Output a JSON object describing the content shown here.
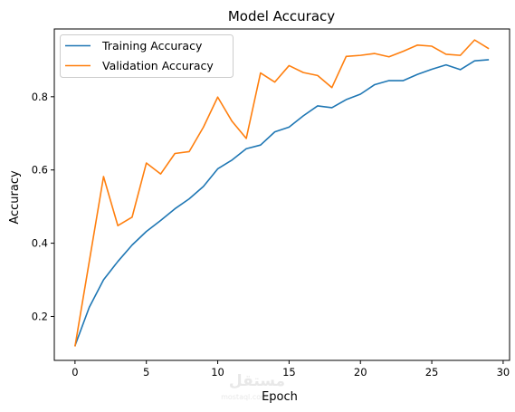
{
  "chart_data": {
    "type": "line",
    "title": "Model Accuracy",
    "xlabel": "Epoch",
    "ylabel": "Accuracy",
    "x": [
      0,
      1,
      2,
      3,
      4,
      5,
      6,
      7,
      8,
      9,
      10,
      11,
      12,
      13,
      14,
      15,
      16,
      17,
      18,
      19,
      20,
      21,
      22,
      23,
      24,
      25,
      26,
      27,
      28,
      29
    ],
    "xlim": [
      -1.45,
      30.45
    ],
    "ylim": [
      0.08,
      0.985
    ],
    "xticks": [
      0,
      5,
      10,
      15,
      20,
      25,
      30
    ],
    "yticks": [
      0.2,
      0.4,
      0.6,
      0.8
    ],
    "xtick_labels": [
      "0",
      "5",
      "10",
      "15",
      "20",
      "25",
      "30"
    ],
    "ytick_labels": [
      "0.2",
      "0.4",
      "0.6",
      "0.8"
    ],
    "series": [
      {
        "name": "Training Accuracy",
        "color": "#1f77b4",
        "values": [
          0.12,
          0.225,
          0.3,
          0.35,
          0.395,
          0.432,
          0.462,
          0.494,
          0.521,
          0.555,
          0.603,
          0.627,
          0.658,
          0.668,
          0.704,
          0.717,
          0.748,
          0.775,
          0.77,
          0.792,
          0.807,
          0.833,
          0.844,
          0.844,
          0.861,
          0.875,
          0.887,
          0.874,
          0.898,
          0.901
        ]
      },
      {
        "name": "Validation Accuracy",
        "color": "#ff7f0e",
        "values": [
          0.118,
          0.35,
          0.582,
          0.448,
          0.471,
          0.619,
          0.589,
          0.645,
          0.65,
          0.717,
          0.799,
          0.733,
          0.686,
          0.865,
          0.84,
          0.885,
          0.866,
          0.858,
          0.825,
          0.91,
          0.913,
          0.918,
          0.909,
          0.924,
          0.941,
          0.938,
          0.916,
          0.913,
          0.955,
          0.931
        ]
      }
    ],
    "legend": {
      "position": "top-left"
    },
    "grid": false
  },
  "watermark": {
    "text": "مستقل",
    "subtext": "mostaql.com"
  }
}
